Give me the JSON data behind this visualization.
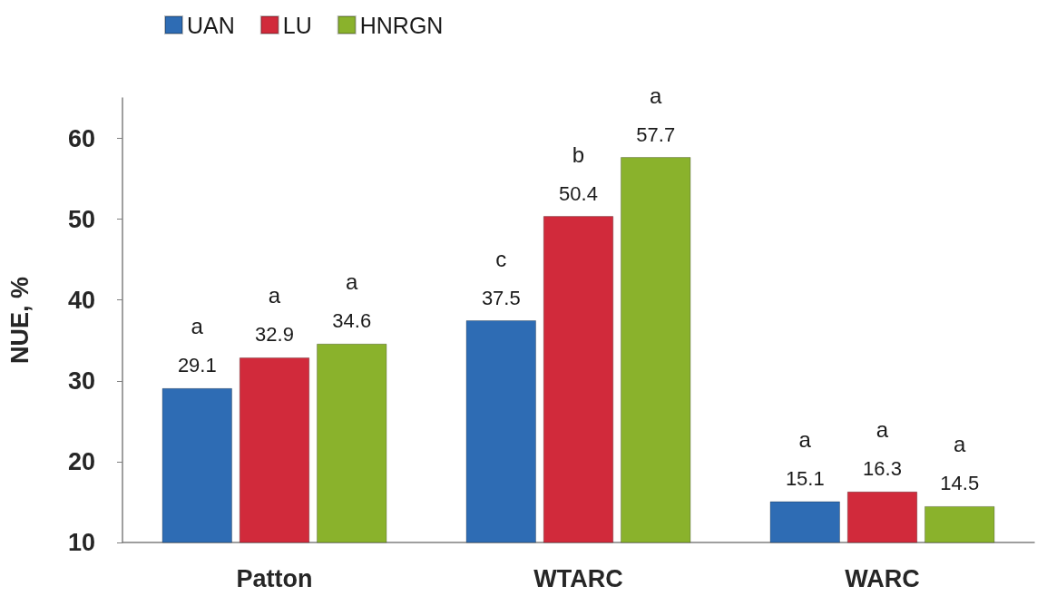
{
  "chart_data": {
    "type": "bar",
    "ylabel": "NUE, %",
    "categories": [
      "Patton",
      "WTARC",
      "WARC"
    ],
    "series": [
      {
        "name": "UAN",
        "color": "#2e6cb4",
        "values": [
          29.1,
          37.5,
          15.1
        ]
      },
      {
        "name": "LU",
        "color": "#d12a3b",
        "values": [
          32.9,
          50.4,
          16.3
        ]
      },
      {
        "name": "HNRGN",
        "color": "#8ab22c",
        "values": [
          34.6,
          57.7,
          14.5
        ]
      }
    ],
    "ylim": [
      10,
      65
    ],
    "yticks": [
      10,
      20,
      30,
      40,
      50,
      60
    ],
    "data_labels": true,
    "legend": "top left",
    "annotations": [
      "a",
      "a",
      "a",
      "c",
      "b",
      "a",
      "a",
      "a",
      "a"
    ]
  }
}
